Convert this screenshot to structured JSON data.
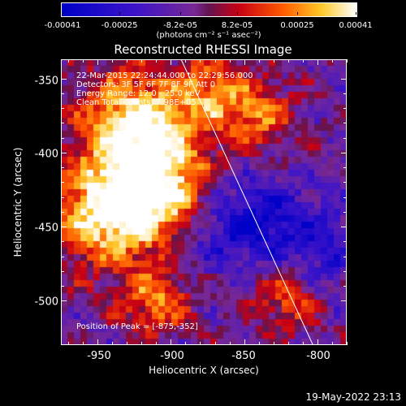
{
  "colorbar": {
    "labels": [
      "-0.00041",
      "-0.00025",
      "-8.2e-05",
      "8.2e-05",
      "0.00025",
      "0.00041"
    ],
    "units": "(photons cm⁻² s⁻¹ asec⁻²)"
  },
  "title": "Reconstructed RHESSI Image",
  "annotations": {
    "line1": "22-Mar-2015 22:24:44.000 to 22:29:56.000",
    "line2": "Detectors: 3F 5F 6F 7F 8F 9F Att 0",
    "line3": "Energy Range: 12.0 - 25.0 keV",
    "line4": "Clean     Total counts: 7.98E+05"
  },
  "peak": "Position of Peak = [-875,-352]",
  "axes": {
    "x_title": "Heliocentric X (arcsec)",
    "y_title": "Heliocentric Y (arcsec)",
    "x_ticks": [
      "-950",
      "-900",
      "-850",
      "-800"
    ],
    "y_ticks": [
      "-350",
      "-400",
      "-450",
      "-500"
    ]
  },
  "timestamp": "19-May-2022 23:13",
  "chart_data": {
    "type": "heatmap",
    "title": "Reconstructed RHESSI Image",
    "xlabel": "Heliocentric X (arcsec)",
    "ylabel": "Heliocentric Y (arcsec)",
    "xlim": [
      -975,
      -780
    ],
    "ylim": [
      -530,
      -337
    ],
    "colorscale_range": [
      -0.00041,
      0.00041
    ],
    "colorscale_ticks": [
      -0.00041,
      -0.00025,
      -8.2e-05,
      8.2e-05,
      0.00025,
      0.00041
    ],
    "limb_line": [
      [
        -893,
        -337
      ],
      [
        -803,
        -530
      ]
    ],
    "peak_position": [
      -875,
      -352
    ],
    "bright_regions": [
      {
        "x": -905,
        "y": -425,
        "level": "high"
      },
      {
        "x": -925,
        "y": -380,
        "level": "high"
      },
      {
        "x": -945,
        "y": -440,
        "level": "high"
      },
      {
        "x": -910,
        "y": -500,
        "level": "medium"
      },
      {
        "x": -875,
        "y": -360,
        "level": "medium"
      },
      {
        "x": -840,
        "y": -375,
        "level": "medium"
      },
      {
        "x": -820,
        "y": -495,
        "level": "medium"
      }
    ],
    "dark_regions": [
      {
        "x": -835,
        "y": -445,
        "level": "low"
      },
      {
        "x": -870,
        "y": -450,
        "level": "low"
      },
      {
        "x": -800,
        "y": -470,
        "level": "low"
      }
    ]
  }
}
